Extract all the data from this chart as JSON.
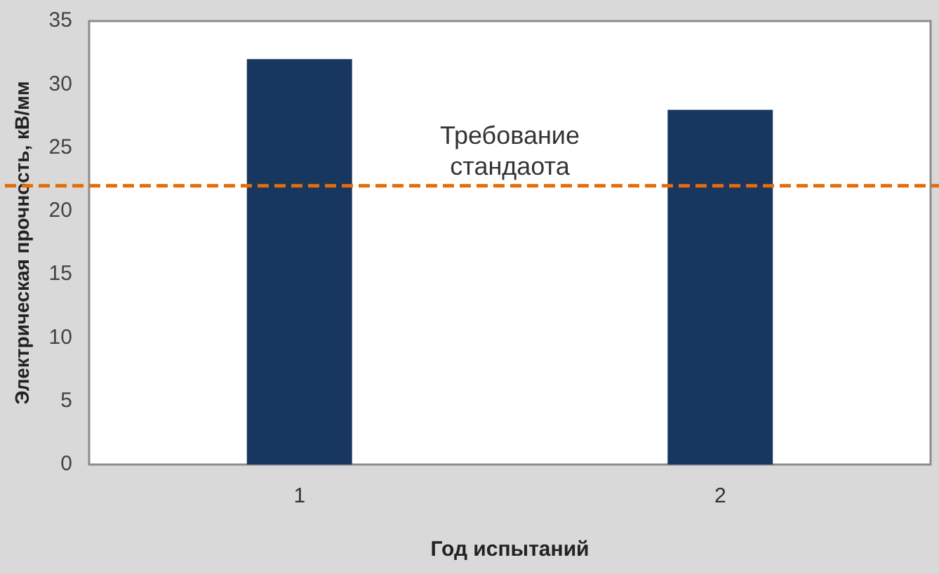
{
  "chart_data": {
    "type": "bar",
    "xlabel": "Год испытаний",
    "ylabel": "Электрическая прочность, кВ/мм",
    "categories": [
      "1",
      "2"
    ],
    "series": [
      {
        "color": "#17375e",
        "values": [
          32,
          28
        ]
      }
    ],
    "ylim": [
      0,
      35
    ],
    "yticks": [
      0,
      5,
      10,
      15,
      20,
      25,
      30,
      35
    ],
    "grid": false,
    "legend": false,
    "ref_lines": [
      {
        "axis": "y",
        "value": 22,
        "label": "Требование стандаота",
        "color": "#e46c0a",
        "line_style": "dashed"
      }
    ]
  }
}
